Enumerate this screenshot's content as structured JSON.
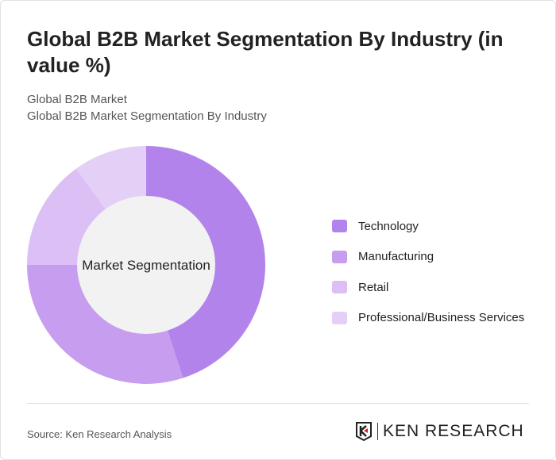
{
  "title": "Global B2B Market Segmentation By Industry (in value %)",
  "subtitle1": "Global B2B Market",
  "subtitle2": "Global B2B Market Segmentation By Industry",
  "source": "Source: Ken Research Analysis",
  "logo_text": "KEN RESEARCH",
  "chart_data": {
    "type": "pie",
    "donut": true,
    "center_label": "Market Segmentation",
    "categories": [
      "Technology",
      "Manufacturing",
      "Retail",
      "Professional/Business Services"
    ],
    "values": [
      45,
      30,
      15,
      10
    ],
    "colors": [
      "#b383ec",
      "#c69def",
      "#dbbff5",
      "#e4cff6"
    ],
    "legend": "right"
  }
}
